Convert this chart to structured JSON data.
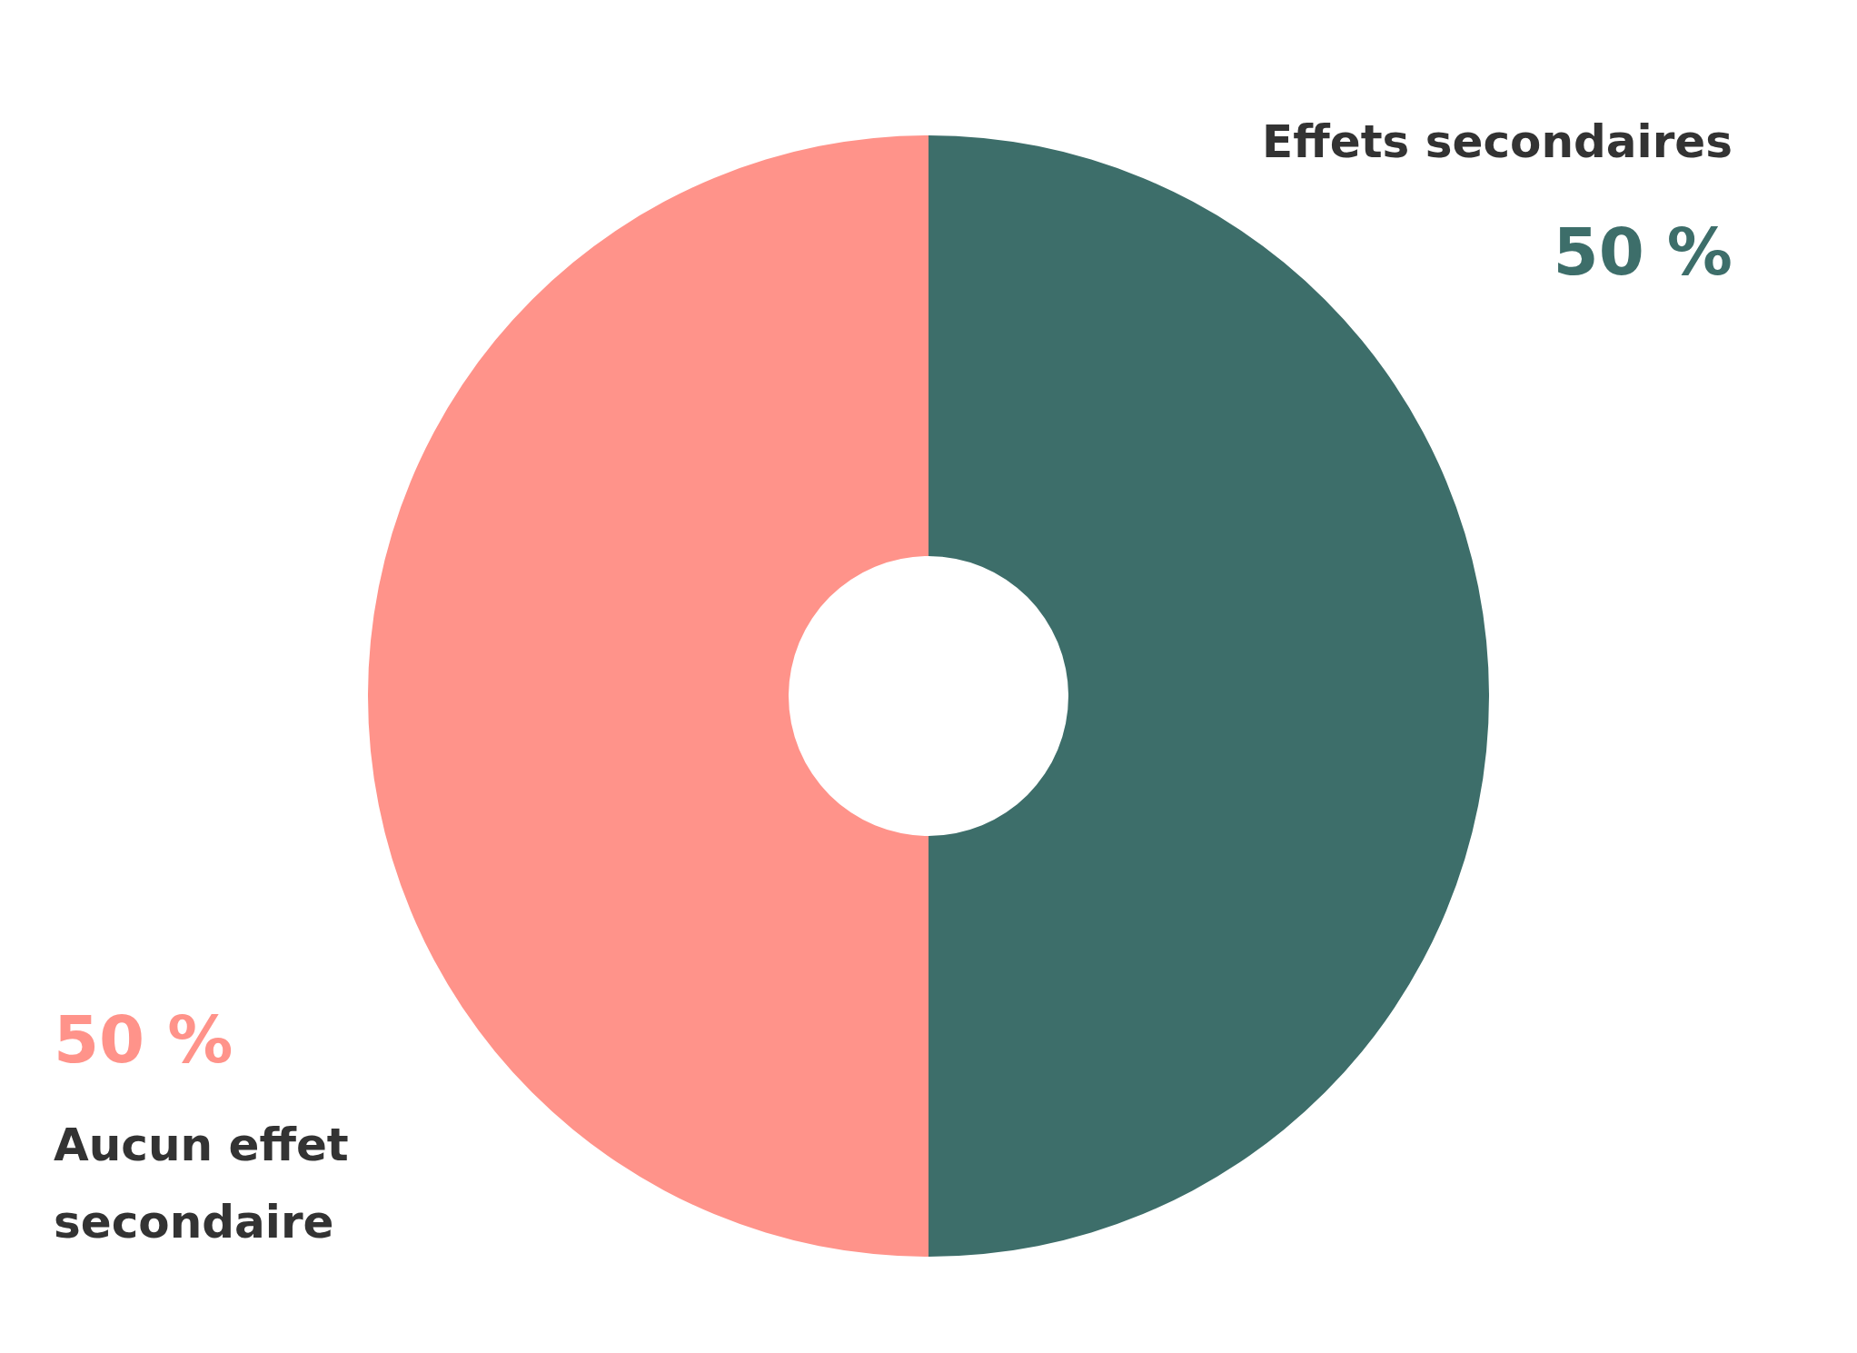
{
  "chart_data": {
    "type": "donut",
    "categories": [
      "Effets secondaires",
      "Aucun effet secondaire"
    ],
    "values": [
      50,
      50
    ],
    "colors": [
      "#3d6e6a",
      "#ff938a"
    ],
    "value_labels": [
      "50 %",
      "50 %"
    ]
  }
}
